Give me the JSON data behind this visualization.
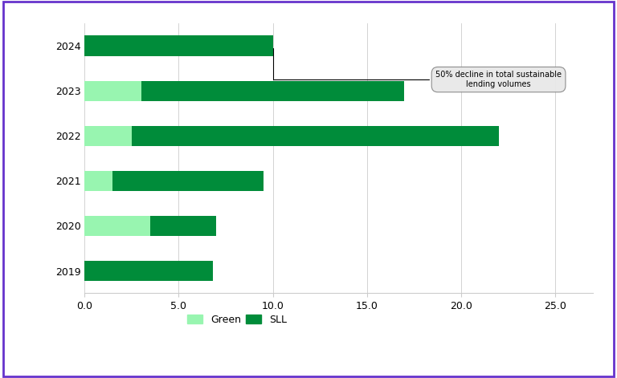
{
  "years": [
    "2024",
    "2023",
    "2022",
    "2021",
    "2020",
    "2019"
  ],
  "green_values": [
    0,
    3.0,
    2.5,
    1.5,
    3.5,
    0
  ],
  "sll_values": [
    10.0,
    17.0,
    22.0,
    9.5,
    7.0,
    6.8
  ],
  "green_color": "#98F5B0",
  "sll_color": "#008C3A",
  "xlim": [
    0,
    27
  ],
  "xticks": [
    0.0,
    5.0,
    10.0,
    15.0,
    20.0,
    25.0
  ],
  "xtick_labels": [
    "0.0",
    "5.0",
    "10.0",
    "15.0",
    "20.0",
    "25.0"
  ],
  "annotation_text": "50% decline in total sustainable\nlending volumes",
  "border_color": "#6633cc",
  "background_color": "#ffffff"
}
